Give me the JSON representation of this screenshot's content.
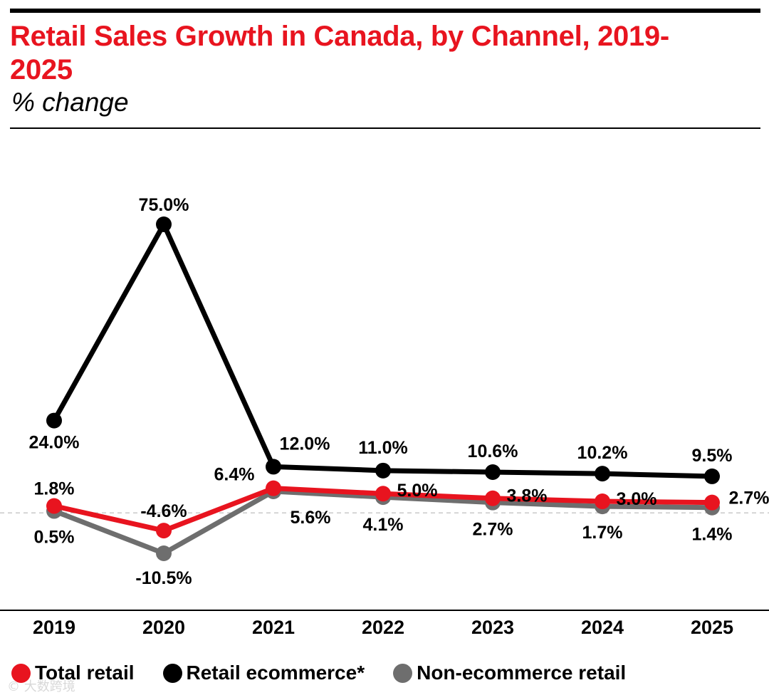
{
  "title": "Retail Sales Growth in Canada, by Channel, 2019-2025",
  "subtitle": "% change",
  "watermark": "© 大数跨境",
  "chart_data": {
    "type": "line",
    "categories": [
      "2019",
      "2020",
      "2021",
      "2022",
      "2023",
      "2024",
      "2025"
    ],
    "ylim": [
      -16,
      92
    ],
    "baseline": 0,
    "series": [
      {
        "name": "Retail ecommerce*",
        "color": "#000000",
        "values": [
          24.0,
          75.0,
          12.0,
          11.0,
          10.6,
          10.2,
          9.5
        ],
        "labels": [
          "24.0%",
          "75.0%",
          "12.0%",
          "11.0%",
          "10.6%",
          "10.2%",
          "9.5%"
        ]
      },
      {
        "name": "Non-ecommerce retail",
        "color": "#6e6e6e",
        "values": [
          0.5,
          -10.5,
          5.6,
          4.1,
          2.7,
          1.7,
          1.4
        ],
        "labels": [
          "0.5%",
          "-10.5%",
          "5.6%",
          "4.1%",
          "2.7%",
          "1.7%",
          "1.4%"
        ]
      },
      {
        "name": "Total retail",
        "color": "#e8141f",
        "values": [
          1.8,
          -4.6,
          6.4,
          5.0,
          3.8,
          3.0,
          2.7
        ],
        "labels": [
          "1.8%",
          "-4.6%",
          "6.4%",
          "5.0%",
          "3.8%",
          "3.0%",
          "2.7%"
        ]
      }
    ],
    "legend": [
      {
        "name": "Total retail",
        "color": "#e8141f"
      },
      {
        "name": "Retail ecommerce*",
        "color": "#000000"
      },
      {
        "name": "Non-ecommerce retail",
        "color": "#6e6e6e"
      }
    ]
  }
}
